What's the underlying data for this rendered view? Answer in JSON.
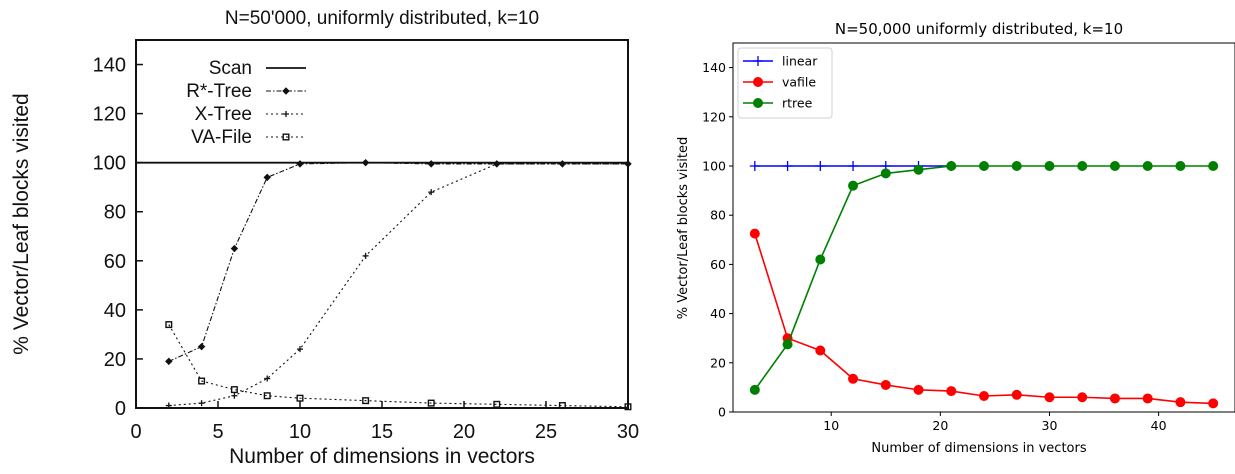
{
  "chart_data": [
    {
      "type": "line",
      "title": "N=50'000, uniformly distributed, k=10",
      "xlabel": "Number of dimensions in vectors",
      "ylabel": "% Vector/Leaf blocks visited",
      "xlim": [
        0,
        30
      ],
      "ylim": [
        0,
        150
      ],
      "xticks": [
        0,
        5,
        10,
        15,
        20,
        25,
        30
      ],
      "yticks": [
        0,
        20,
        40,
        60,
        80,
        100,
        120,
        140
      ],
      "grid": false,
      "legend": "top-left",
      "series": [
        {
          "name": "Scan",
          "marker": "none",
          "dash": "solid",
          "x": [
            0,
            30
          ],
          "y": [
            100,
            100
          ]
        },
        {
          "name": "R*-Tree",
          "marker": "diamond",
          "dash": "dashdot",
          "x": [
            2,
            4,
            6,
            8,
            10,
            14,
            18,
            22,
            26,
            30
          ],
          "y": [
            19,
            25,
            65,
            94,
            99.5,
            100,
            99.5,
            99.5,
            99.5,
            99.5
          ]
        },
        {
          "name": "X-Tree",
          "marker": "plus",
          "dash": "dotted",
          "x": [
            2,
            4,
            6,
            8,
            10,
            14,
            18,
            22,
            26,
            30
          ],
          "y": [
            1,
            2,
            5,
            12,
            24,
            62,
            88,
            99.5,
            99.5,
            99.5
          ]
        },
        {
          "name": "VA-File",
          "marker": "square",
          "dash": "dotted",
          "x": [
            2,
            4,
            6,
            8,
            10,
            14,
            18,
            22,
            26,
            30
          ],
          "y": [
            34,
            11,
            7.5,
            5,
            4,
            3,
            2,
            1.5,
            1,
            0.5
          ]
        }
      ]
    },
    {
      "type": "line",
      "title": "N=50,000 uniformly distributed, k=10",
      "xlabel": "Number of dimensions in vectors",
      "ylabel": "% Vector/Leaf blocks visited",
      "xlim": [
        1,
        47
      ],
      "ylim": [
        0,
        150
      ],
      "xticks": [
        10,
        20,
        30,
        40
      ],
      "yticks": [
        0,
        20,
        40,
        60,
        80,
        100,
        120,
        140
      ],
      "grid": false,
      "legend": "top-left",
      "series": [
        {
          "name": "linear",
          "color": "#0000ff",
          "marker": "plus",
          "x": [
            3,
            6,
            9,
            12,
            15,
            18,
            21
          ],
          "y": [
            100,
            100,
            100,
            100,
            100,
            100,
            100
          ]
        },
        {
          "name": "vafile",
          "color": "#ff0000",
          "marker": "circle",
          "x": [
            3,
            6,
            9,
            12,
            15,
            18,
            21,
            24,
            27,
            30,
            33,
            36,
            39,
            42,
            45
          ],
          "y": [
            72.5,
            30,
            25,
            13.5,
            11,
            9,
            8.5,
            6.5,
            7,
            6,
            6,
            5.5,
            5.5,
            4,
            3.5
          ]
        },
        {
          "name": "rtree",
          "color": "#008000",
          "marker": "circle",
          "x": [
            3,
            6,
            9,
            12,
            15,
            18,
            21,
            24,
            27,
            30,
            33,
            36,
            39,
            42,
            45
          ],
          "y": [
            9,
            27.5,
            62,
            92,
            97,
            98.5,
            100,
            100,
            100,
            100,
            100,
            100,
            100,
            100,
            100
          ]
        }
      ]
    }
  ]
}
